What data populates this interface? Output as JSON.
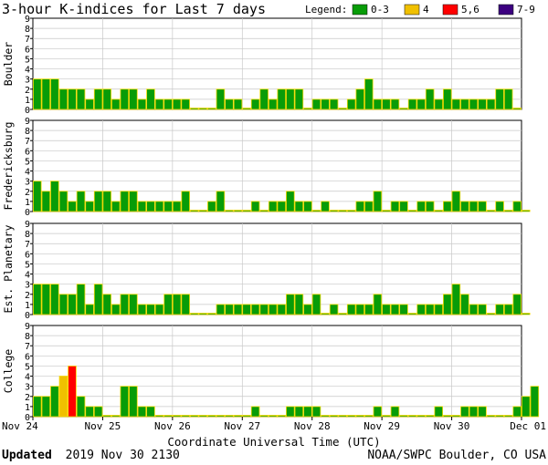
{
  "title": "3-hour K-indices for Last 7 days",
  "legend": {
    "label": "Legend:",
    "items": [
      {
        "label": "0-3",
        "color": "#089c08"
      },
      {
        "label": "4",
        "color": "#f0c000"
      },
      {
        "label": "5,6",
        "color": "#ff0000"
      },
      {
        "label": "7-9",
        "color": "#3c0080"
      }
    ]
  },
  "bar_edge_color": "#f5d800",
  "x_tick_labels": [
    "Nov 24",
    "Nov 25",
    "Nov 26",
    "Nov 27",
    "Nov 28",
    "Nov 29",
    "Nov 30",
    "Dec 01"
  ],
  "xlabel": "Coordinate Universal Time (UTC)",
  "footer": {
    "updated_label": "Updated",
    "updated_value": "2019 Nov 30 2130",
    "source": "NOAA/SWPC Boulder, CO USA"
  },
  "chart_data": [
    {
      "type": "bar",
      "ylabel": "Boulder",
      "ylim": [
        0,
        9
      ],
      "yticks": [
        0,
        1,
        2,
        3,
        4,
        5,
        6,
        7,
        8,
        9
      ],
      "interval_hours": 3,
      "values": [
        3,
        3,
        3,
        2,
        2,
        2,
        1,
        2,
        2,
        1,
        2,
        2,
        1,
        2,
        1,
        1,
        1,
        1,
        0,
        0,
        0,
        2,
        1,
        1,
        0,
        1,
        2,
        1,
        2,
        2,
        2,
        0,
        1,
        1,
        1,
        0,
        1,
        2,
        3,
        1,
        1,
        1,
        0,
        1,
        1,
        2,
        1,
        2,
        1,
        1,
        1,
        1,
        1,
        2,
        2,
        0
      ]
    },
    {
      "type": "bar",
      "ylabel": "Fredericksburg",
      "ylim": [
        0,
        9
      ],
      "yticks": [
        0,
        1,
        2,
        3,
        4,
        5,
        6,
        7,
        8,
        9
      ],
      "interval_hours": 3,
      "values": [
        3,
        2,
        3,
        2,
        1,
        2,
        1,
        2,
        2,
        1,
        2,
        2,
        1,
        1,
        1,
        1,
        1,
        2,
        0,
        0,
        1,
        2,
        0,
        0,
        0,
        1,
        0,
        1,
        1,
        2,
        1,
        1,
        0,
        1,
        0,
        0,
        0,
        1,
        1,
        2,
        0,
        1,
        1,
        0,
        1,
        1,
        0,
        1,
        2,
        1,
        1,
        1,
        0,
        1,
        0,
        1,
        0
      ]
    },
    {
      "type": "bar",
      "ylabel": "Est. Planetary",
      "ylim": [
        0,
        9
      ],
      "yticks": [
        0,
        1,
        2,
        3,
        4,
        5,
        6,
        7,
        8,
        9
      ],
      "interval_hours": 3,
      "values": [
        3,
        3,
        3,
        2,
        2,
        3,
        1,
        3,
        2,
        1,
        2,
        2,
        1,
        1,
        1,
        2,
        2,
        2,
        0,
        0,
        0,
        1,
        1,
        1,
        1,
        1,
        1,
        1,
        1,
        2,
        2,
        1,
        2,
        0,
        1,
        0,
        1,
        1,
        1,
        2,
        1,
        1,
        1,
        0,
        1,
        1,
        1,
        2,
        3,
        2,
        1,
        1,
        0,
        1,
        1,
        2,
        0
      ]
    },
    {
      "type": "bar",
      "ylabel": "College",
      "ylim": [
        0,
        9
      ],
      "yticks": [
        0,
        1,
        2,
        3,
        4,
        5,
        6,
        7,
        8,
        9
      ],
      "interval_hours": 3,
      "values": [
        2,
        2,
        3,
        4,
        5,
        2,
        1,
        1,
        0,
        0,
        3,
        3,
        1,
        1,
        0,
        0,
        0,
        0,
        0,
        0,
        0,
        0,
        0,
        0,
        0,
        1,
        0,
        0,
        0,
        1,
        1,
        1,
        1,
        0,
        0,
        0,
        0,
        0,
        0,
        1,
        0,
        1,
        0,
        0,
        0,
        0,
        1,
        0,
        0,
        1,
        1,
        1,
        0,
        0,
        0,
        1,
        2,
        3
      ]
    }
  ]
}
